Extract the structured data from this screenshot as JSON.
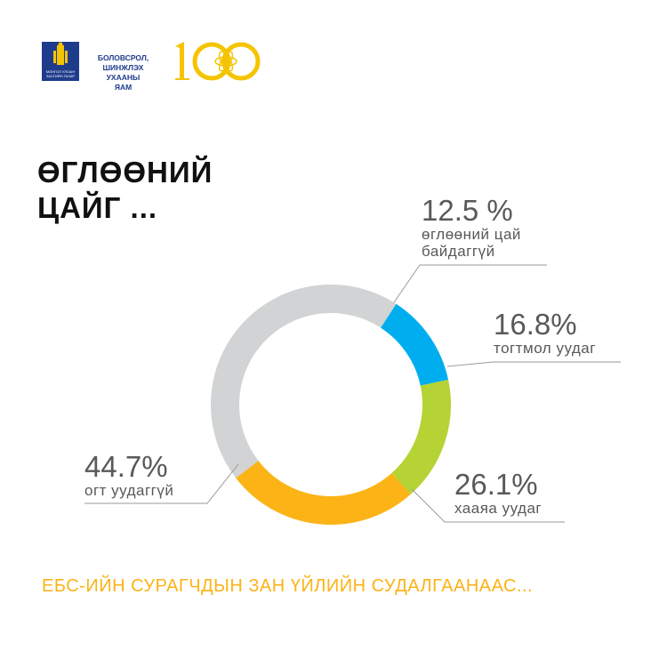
{
  "header": {
    "emblem_text": "МОНГОЛ УЛСЫН ЗАСГИЙН ГАЗАР",
    "ministry": [
      "БОЛОВСРОЛ,",
      "ШИНЖЛЭХ УХААНЫ",
      "ЯАМ"
    ],
    "anniversary_logo": "100"
  },
  "title": [
    "ӨГЛӨӨНИЙ",
    "ЦАЙГ ..."
  ],
  "footer": "ЕБС-ИЙН СУРАГЧДЫН ЗАН ҮЙЛИЙН СУДАЛГААНААС...",
  "chart_data": {
    "type": "pie",
    "donut": true,
    "title": "ӨГЛӨӨНИЙ ЦАЙГ ...",
    "slices": [
      {
        "pct_label": "12.5 %",
        "label": [
          "өглөөний цай",
          "байдаггүй"
        ],
        "value": 12.5,
        "color": "#00aeef"
      },
      {
        "pct_label": "16.8%",
        "label": [
          "тогтмол уудаг"
        ],
        "value": 16.8,
        "color": "#b5d334"
      },
      {
        "pct_label": "26.1%",
        "label": [
          "хааяа уудаг"
        ],
        "value": 26.1,
        "color": "#fbb316"
      },
      {
        "pct_label": "44.7%",
        "label": [
          "огт уудаггүй"
        ],
        "value": 44.7,
        "color": "#d1d3d4"
      }
    ]
  }
}
